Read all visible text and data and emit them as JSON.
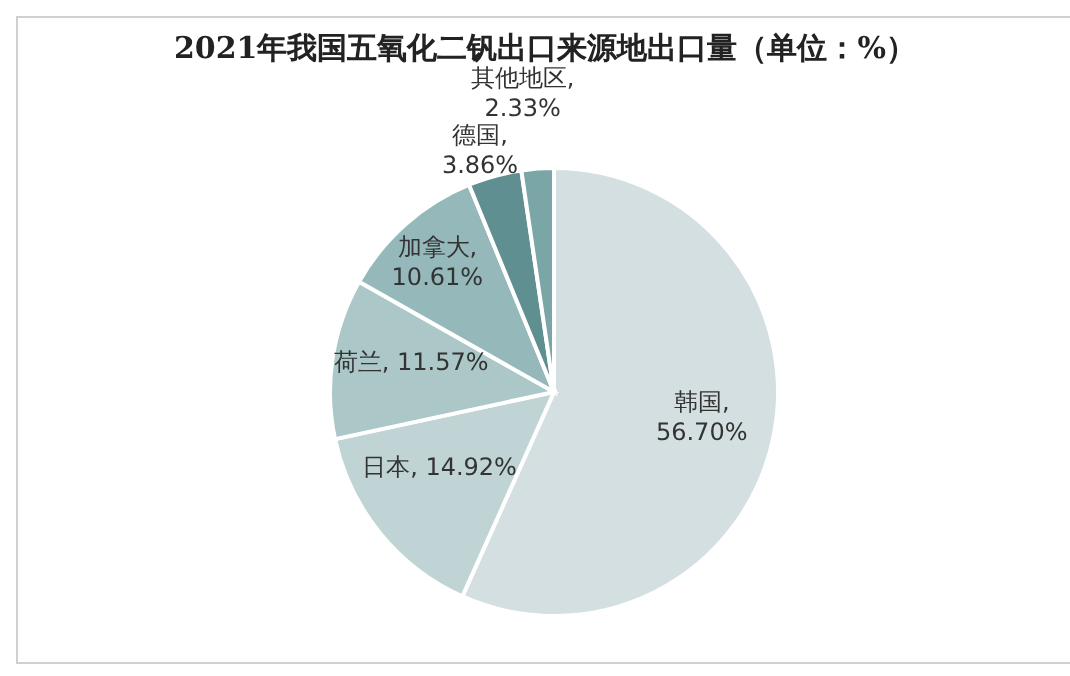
{
  "chart_data": {
    "type": "pie",
    "title": "2021年我国五氧化二钒出口来源地出口量（单位：%）",
    "categories": [
      "韩国",
      "日本",
      "荷兰",
      "加拿大",
      "德国",
      "其他地区"
    ],
    "values": [
      56.7,
      14.92,
      11.57,
      10.61,
      3.86,
      2.33
    ],
    "value_labels": [
      ", 56.70%",
      ", 14.92%",
      ", 11.57%",
      ", 10.61%",
      ", 3.86%",
      ", 2.33%"
    ],
    "colors": [
      "#d3dfe0",
      "#c0d4d5",
      "#abc7c8",
      "#95b9ba",
      "#5f8f90",
      "#7aa6a8"
    ]
  }
}
